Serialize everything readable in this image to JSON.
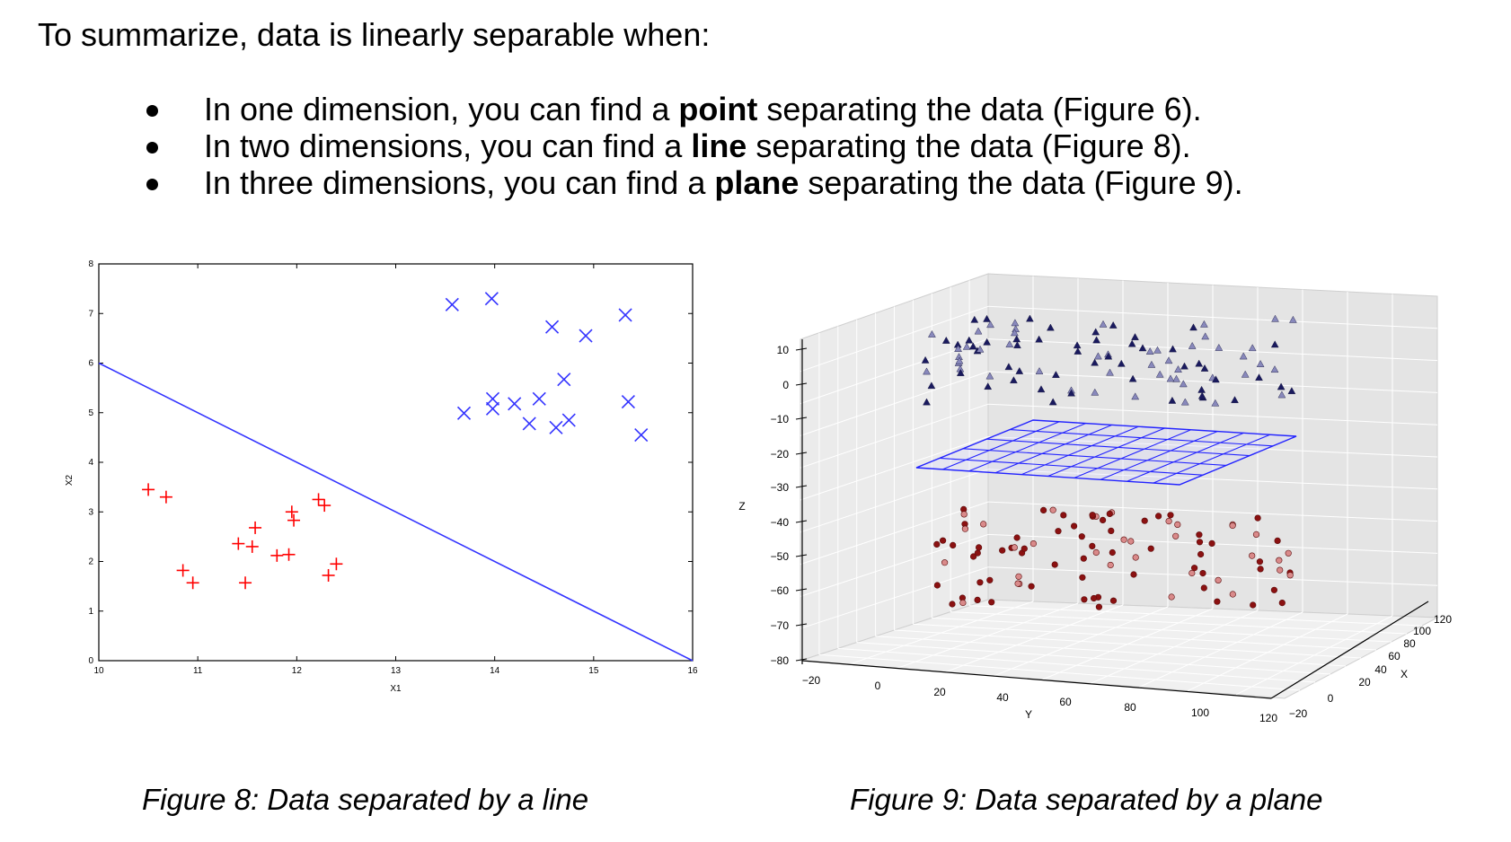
{
  "intro": "To summarize, data is linearly separable when:",
  "bullets": [
    {
      "before": "In one dimension, you can find a ",
      "bold": "point",
      "after": " separating the data (Figure 6)."
    },
    {
      "before": "In two dimensions, you can find a ",
      "bold": "line",
      "after": " separating the data (Figure 8)."
    },
    {
      "before": "In three dimensions, you can find a ",
      "bold": "plane",
      "after": " separating the data (Figure 9)."
    }
  ],
  "figure8": {
    "caption": "Figure 8: Data separated by a line",
    "chart_data": {
      "type": "scatter",
      "xlabel": "X1",
      "ylabel": "X2",
      "xlim": [
        10,
        16
      ],
      "ylim": [
        0,
        8
      ],
      "xticks": [
        "10",
        "11",
        "12",
        "13",
        "14",
        "15",
        "16"
      ],
      "yticks": [
        "0",
        "1",
        "2",
        "3",
        "4",
        "5",
        "6",
        "7",
        "8"
      ],
      "line": {
        "x": [
          10,
          16
        ],
        "y": [
          6,
          0
        ],
        "color": "#3333ff"
      },
      "series": [
        {
          "marker": "plus",
          "color": "#ff0000",
          "points": [
            [
              10.5,
              3.45
            ],
            [
              10.68,
              3.3
            ],
            [
              10.85,
              1.82
            ],
            [
              10.95,
              1.57
            ],
            [
              11.41,
              2.36
            ],
            [
              11.55,
              2.3
            ],
            [
              11.58,
              2.68
            ],
            [
              11.48,
              1.57
            ],
            [
              11.8,
              2.12
            ],
            [
              11.92,
              2.14
            ],
            [
              11.95,
              3.0
            ],
            [
              11.97,
              2.83
            ],
            [
              12.22,
              3.25
            ],
            [
              12.28,
              3.13
            ],
            [
              12.32,
              1.72
            ],
            [
              12.4,
              1.95
            ]
          ]
        },
        {
          "marker": "x",
          "color": "#3333ff",
          "points": [
            [
              13.57,
              7.18
            ],
            [
              13.97,
              7.3
            ],
            [
              14.58,
              6.73
            ],
            [
              14.92,
              6.55
            ],
            [
              15.32,
              6.97
            ],
            [
              13.69,
              4.99
            ],
            [
              13.98,
              5.28
            ],
            [
              13.98,
              5.08
            ],
            [
              14.2,
              5.18
            ],
            [
              14.35,
              4.78
            ],
            [
              14.45,
              5.28
            ],
            [
              14.62,
              4.7
            ],
            [
              14.7,
              5.67
            ],
            [
              14.75,
              4.85
            ],
            [
              15.35,
              5.22
            ],
            [
              15.48,
              4.55
            ]
          ]
        }
      ]
    }
  },
  "figure9": {
    "caption": "Figure 9: Data separated by a plane",
    "chart_data": {
      "type": "scatter",
      "xlabel": "X",
      "ylabel": "Y",
      "zlabel": "Z",
      "zticks": [
        "10",
        "0",
        "−10",
        "−20",
        "−30",
        "−40",
        "−50",
        "−60",
        "−70",
        "−80"
      ],
      "yticks": [
        "−20",
        "0",
        "20",
        "40",
        "60",
        "80",
        "100",
        "120"
      ],
      "xticks": [
        "−20",
        "0",
        "20",
        "40",
        "60",
        "80",
        "100",
        "120"
      ],
      "plane_color": "#2222ff",
      "series": [
        {
          "marker": "triangle",
          "color": "#1a1a5e"
        },
        {
          "marker": "circle",
          "color": "#8b1111"
        }
      ]
    }
  }
}
